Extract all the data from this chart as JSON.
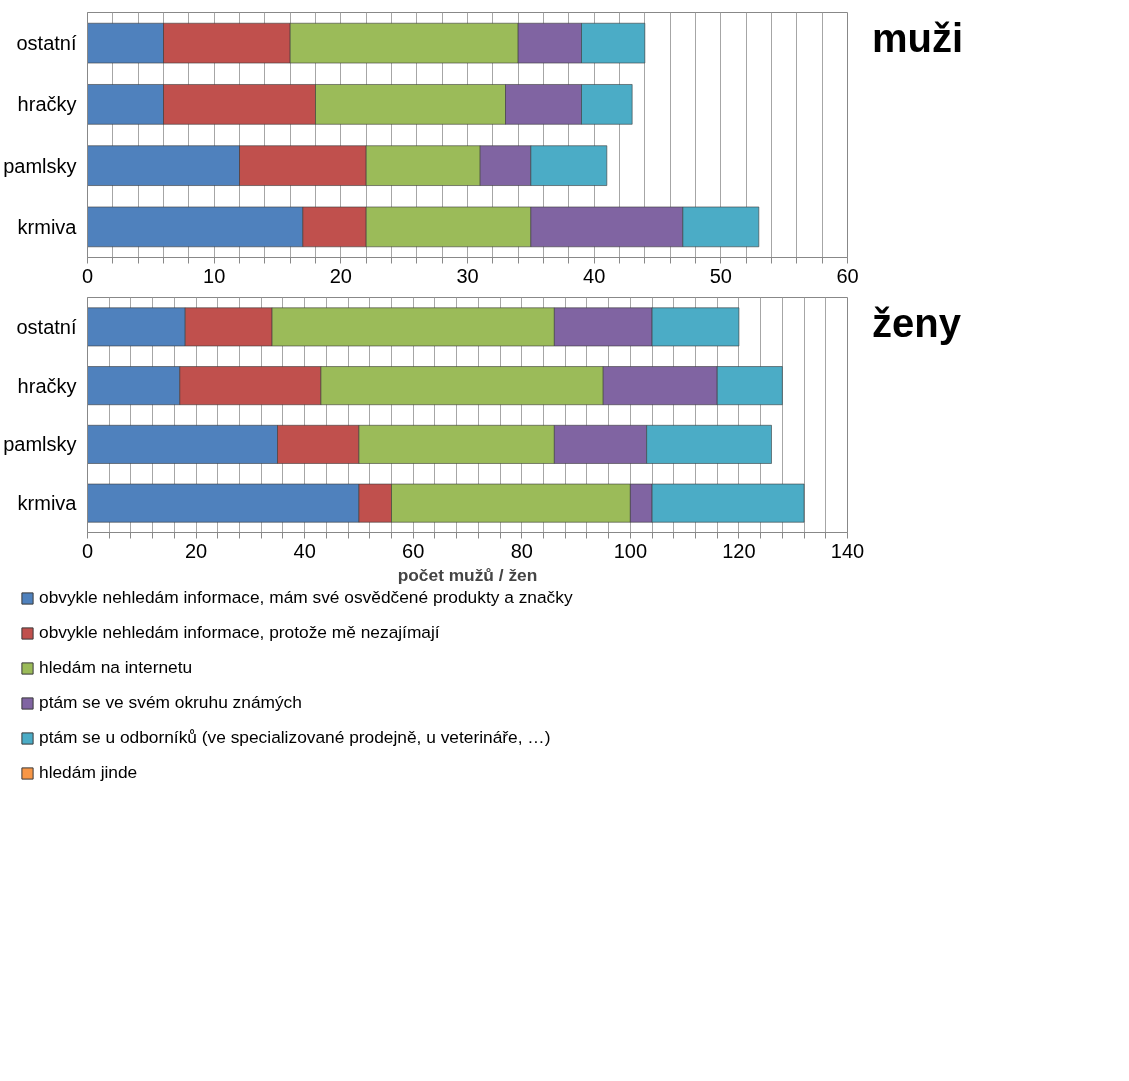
{
  "chart_data": [
    {
      "type": "bar",
      "orientation": "horizontal",
      "stacked": true,
      "title": "muži",
      "categories": [
        "ostatní",
        "hračky",
        "pamlsky",
        "krmiva"
      ],
      "xlim": [
        0,
        60
      ],
      "xticks": [
        0,
        {
          "value": 2,
          "label": null
        },
        {
          "value": 4,
          "label": null
        },
        {
          "value": 6,
          "label": null
        },
        {
          "value": 8,
          "label": null
        },
        10,
        {
          "value": 12,
          "label": null
        },
        {
          "value": 14,
          "label": null
        },
        {
          "value": 16,
          "label": null
        },
        {
          "value": 18,
          "label": null
        },
        20,
        {
          "value": 22,
          "label": null
        },
        {
          "value": 24,
          "label": null
        },
        {
          "value": 26,
          "label": null
        },
        {
          "value": 28,
          "label": null
        },
        30,
        {
          "value": 32,
          "label": null
        },
        {
          "value": 34,
          "label": null
        },
        {
          "value": 36,
          "label": null
        },
        {
          "value": 38,
          "label": null
        },
        40,
        {
          "value": 42,
          "label": null
        },
        {
          "value": 44,
          "label": null
        },
        {
          "value": 46,
          "label": null
        },
        {
          "value": 48,
          "label": null
        },
        50,
        {
          "value": 52,
          "label": null
        },
        {
          "value": 54,
          "label": null
        },
        {
          "value": 56,
          "label": null
        },
        {
          "value": 58,
          "label": null
        },
        60
      ],
      "grid": "x",
      "series": [
        {
          "color": "#4f81bd",
          "values": [
            6,
            6,
            12,
            17
          ]
        },
        {
          "color": "#c0504d",
          "values": [
            10,
            12,
            10,
            5
          ]
        },
        {
          "color": "#9bbb59",
          "values": [
            18,
            15,
            9,
            13
          ]
        },
        {
          "color": "#8064a2",
          "values": [
            5,
            6,
            4,
            12
          ]
        },
        {
          "color": "#4bacc6",
          "values": [
            5,
            4,
            6,
            6
          ]
        },
        {
          "color": "#f79646",
          "values": [
            0,
            0,
            0,
            0
          ]
        }
      ]
    },
    {
      "type": "bar",
      "orientation": "horizontal",
      "stacked": true,
      "title": "ženy",
      "xlabel": "počet mužů / žen",
      "categories": [
        "ostatní",
        "hračky",
        "pamlsky",
        "krmiva"
      ],
      "xlim": [
        0,
        140
      ],
      "xticks": [
        0,
        {
          "value": 4,
          "label": null
        },
        {
          "value": 8,
          "label": null
        },
        {
          "value": 12,
          "label": null
        },
        {
          "value": 16,
          "label": null
        },
        20,
        {
          "value": 24,
          "label": null
        },
        {
          "value": 28,
          "label": null
        },
        {
          "value": 32,
          "label": null
        },
        {
          "value": 36,
          "label": null
        },
        40,
        {
          "value": 44,
          "label": null
        },
        {
          "value": 48,
          "label": null
        },
        {
          "value": 52,
          "label": null
        },
        {
          "value": 56,
          "label": null
        },
        60,
        {
          "value": 64,
          "label": null
        },
        {
          "value": 68,
          "label": null
        },
        {
          "value": 72,
          "label": null
        },
        {
          "value": 76,
          "label": null
        },
        80,
        {
          "value": 84,
          "label": null
        },
        {
          "value": 88,
          "label": null
        },
        {
          "value": 92,
          "label": null
        },
        {
          "value": 96,
          "label": null
        },
        100,
        {
          "value": 104,
          "label": null
        },
        {
          "value": 108,
          "label": null
        },
        {
          "value": 112,
          "label": null
        },
        {
          "value": 116,
          "label": null
        },
        120,
        {
          "value": 124,
          "label": null
        },
        {
          "value": 128,
          "label": null
        },
        {
          "value": 132,
          "label": null
        },
        {
          "value": 136,
          "label": null
        },
        140
      ],
      "grid": "x",
      "legend": "bottom",
      "series": [
        {
          "name": "obvykle nehledám informace, mám své osvědčené produkty a značky",
          "color": "#4f81bd",
          "values": [
            18,
            17,
            35,
            50
          ]
        },
        {
          "name": "obvykle nehledám informace, protože mě nezajímají",
          "color": "#c0504d",
          "values": [
            16,
            26,
            15,
            6
          ]
        },
        {
          "name": "hledám na internetu",
          "color": "#9bbb59",
          "values": [
            52,
            52,
            36,
            44
          ]
        },
        {
          "name": "ptám se ve svém okruhu známých",
          "color": "#8064a2",
          "values": [
            18,
            21,
            17,
            4
          ]
        },
        {
          "name": "ptám se u odborníků (ve specializované prodejně, u veterináře, …)",
          "color": "#4bacc6",
          "values": [
            16,
            12,
            23,
            28
          ]
        },
        {
          "name": "hledám jinde",
          "color": "#f79646",
          "values": [
            0,
            0,
            0,
            0
          ]
        }
      ]
    }
  ]
}
